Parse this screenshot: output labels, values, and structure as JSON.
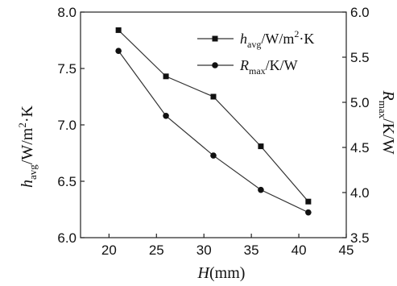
{
  "chart_data": {
    "type": "line",
    "x_axis": {
      "label": {
        "main": "H",
        "unit": "(mm)"
      },
      "range": [
        17,
        45
      ],
      "ticks": [
        20,
        25,
        30,
        35,
        40,
        45
      ]
    },
    "y_left": {
      "label": {
        "sym": "h",
        "sub": "avg",
        "unit": "/W/m",
        "sup": "2",
        "tail": "·K"
      },
      "range": [
        6.0,
        8.0
      ],
      "ticks": [
        6.0,
        6.5,
        7.0,
        7.5,
        8.0
      ],
      "tick_labels": [
        "6.0",
        "6.5",
        "7.0",
        "7.5",
        "8.0"
      ]
    },
    "y_right": {
      "label": {
        "sym": "R",
        "sub": "max",
        "unit": "/K/W"
      },
      "range": [
        3.5,
        6.0
      ],
      "ticks": [
        3.5,
        4.0,
        4.5,
        5.0,
        5.5,
        6.0
      ],
      "tick_labels": [
        "3.5",
        "4.0",
        "4.5",
        "5.0",
        "5.5",
        "6.0"
      ]
    },
    "series": [
      {
        "name": {
          "sym": "h",
          "sub": "avg",
          "unit": "/W/m",
          "sup": "2",
          "tail": "·K"
        },
        "axis": "left",
        "marker": "square",
        "x": [
          21,
          26,
          31,
          36,
          41
        ],
        "y": [
          7.84,
          7.43,
          7.25,
          6.81,
          6.32
        ]
      },
      {
        "name": {
          "sym": "R",
          "sub": "max",
          "unit": "/K/W"
        },
        "axis": "right",
        "marker": "circle",
        "x": [
          21,
          26,
          31,
          36,
          41
        ],
        "y": [
          5.57,
          4.85,
          4.41,
          4.03,
          3.78
        ]
      }
    ],
    "legend_position": "top-right",
    "grid": false
  }
}
